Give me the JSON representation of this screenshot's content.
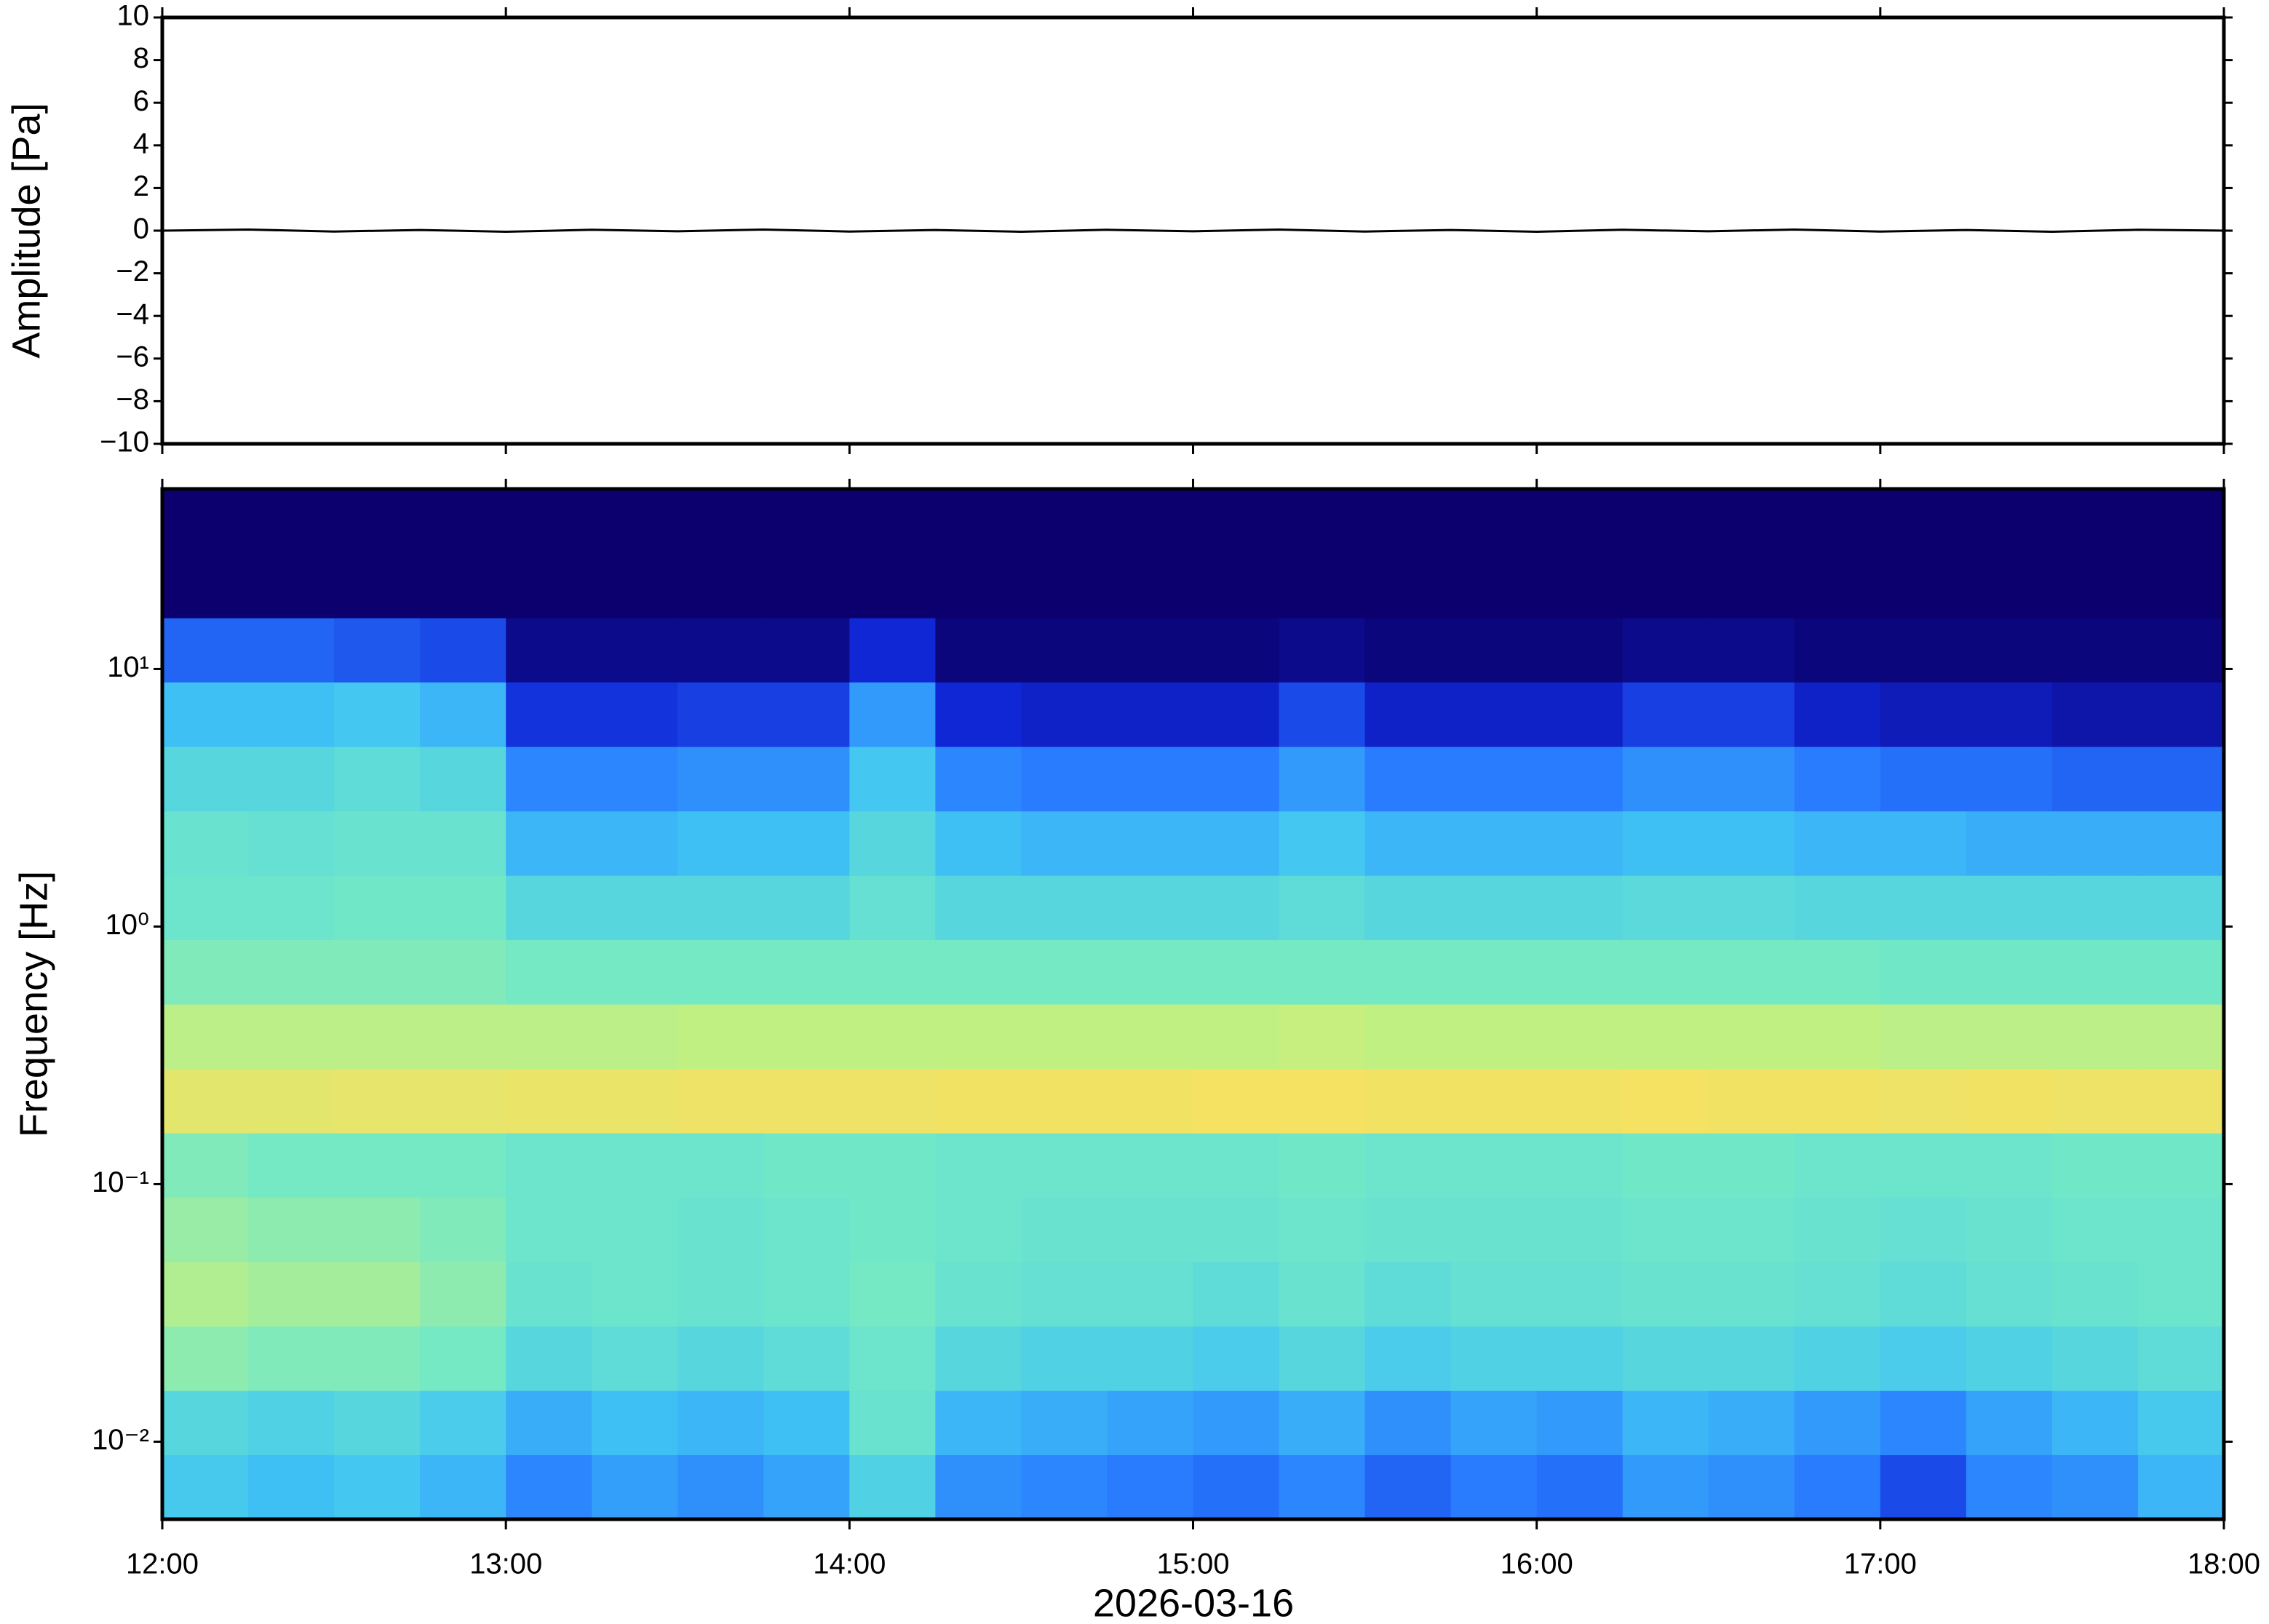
{
  "chart_data": [
    {
      "type": "line",
      "ylabel": "Amplitude [Pa]",
      "color": "#000000",
      "x": [
        "12:00",
        "12:15",
        "12:30",
        "12:45",
        "13:00",
        "13:15",
        "13:30",
        "13:45",
        "14:00",
        "14:15",
        "14:30",
        "14:45",
        "15:00",
        "15:15",
        "15:30",
        "15:45",
        "16:00",
        "16:15",
        "16:30",
        "16:45",
        "17:00",
        "17:15",
        "17:30",
        "17:45",
        "18:00"
      ],
      "values": [
        0,
        0.05,
        -0.04,
        0.03,
        -0.05,
        0.04,
        -0.03,
        0.05,
        -0.04,
        0.03,
        -0.05,
        0.04,
        -0.03,
        0.05,
        -0.04,
        0.03,
        -0.05,
        0.04,
        -0.03,
        0.05,
        -0.04,
        0.03,
        -0.05,
        0.04,
        0
      ],
      "xlim": [
        "12:00",
        "18:00"
      ],
      "ylim": [
        -10,
        10
      ],
      "yticks": [
        {
          "value": -10,
          "label": "−10"
        },
        {
          "value": -8,
          "label": "−8"
        },
        {
          "value": -6,
          "label": "−6"
        },
        {
          "value": -4,
          "label": "−4"
        },
        {
          "value": -2,
          "label": "−2"
        },
        0,
        2,
        4,
        6,
        8,
        10
      ]
    },
    {
      "type": "heatmap",
      "ylabel": "Frequency [Hz]",
      "xlabel": "2026-03-16",
      "ylog": true,
      "time_bins": [
        "12:00",
        "12:15",
        "12:30",
        "12:45",
        "13:00",
        "13:15",
        "13:30",
        "13:45",
        "14:00",
        "14:15",
        "14:30",
        "14:45",
        "15:00",
        "15:15",
        "15:30",
        "15:45",
        "16:00",
        "16:15",
        "16:30",
        "16:45",
        "17:00",
        "17:15",
        "17:30",
        "17:45",
        "18:00"
      ],
      "freq_bins": [
        0.005,
        0.0089,
        0.0158,
        0.0281,
        0.05,
        0.089,
        0.158,
        0.281,
        0.5,
        0.89,
        1.58,
        2.81,
        5,
        8.9,
        15.8,
        28.1,
        50
      ],
      "values": [
        [
          45,
          42,
          44,
          40,
          30,
          35,
          32,
          36,
          48,
          32,
          30,
          28,
          26,
          30,
          24,
          28,
          26,
          34,
          32,
          28,
          20,
          30,
          32,
          40
        ],
        [
          50,
          48,
          50,
          46,
          38,
          42,
          40,
          42,
          55,
          40,
          38,
          36,
          34,
          38,
          32,
          36,
          34,
          40,
          38,
          34,
          30,
          36,
          40,
          45
        ],
        [
          62,
          60,
          60,
          58,
          50,
          52,
          50,
          52,
          56,
          50,
          48,
          48,
          46,
          50,
          46,
          48,
          48,
          50,
          50,
          48,
          46,
          48,
          50,
          52
        ],
        [
          68,
          66,
          66,
          62,
          55,
          56,
          55,
          56,
          58,
          55,
          54,
          54,
          52,
          55,
          52,
          54,
          54,
          55,
          55,
          54,
          52,
          54,
          55,
          56
        ],
        [
          64,
          62,
          62,
          60,
          56,
          56,
          55,
          56,
          57,
          56,
          55,
          55,
          55,
          56,
          55,
          55,
          55,
          56,
          56,
          55,
          54,
          55,
          56,
          56
        ],
        [
          60,
          58,
          58,
          58,
          56,
          56,
          56,
          57,
          57,
          56,
          56,
          56,
          56,
          57,
          56,
          56,
          56,
          57,
          57,
          56,
          56,
          56,
          57,
          57
        ],
        [
          80,
          80,
          81,
          81,
          82,
          82,
          83,
          83,
          83,
          84,
          84,
          84,
          85,
          85,
          84,
          84,
          84,
          85,
          84,
          84,
          83,
          84,
          83,
          83
        ],
        [
          70,
          70,
          70,
          70,
          70,
          70,
          71,
          71,
          71,
          71,
          71,
          71,
          71,
          72,
          71,
          71,
          71,
          71,
          71,
          71,
          70,
          70,
          70,
          70
        ],
        [
          60,
          60,
          60,
          60,
          58,
          58,
          58,
          58,
          58,
          58,
          58,
          58,
          58,
          58,
          58,
          58,
          58,
          58,
          58,
          58,
          57,
          57,
          57,
          57
        ],
        [
          56,
          56,
          57,
          57,
          50,
          50,
          50,
          50,
          54,
          50,
          50,
          50,
          50,
          52,
          50,
          50,
          50,
          51,
          51,
          50,
          50,
          50,
          50,
          50
        ],
        [
          55,
          54,
          55,
          55,
          40,
          40,
          42,
          42,
          50,
          42,
          40,
          40,
          40,
          44,
          40,
          40,
          40,
          42,
          42,
          40,
          40,
          38,
          38,
          38
        ],
        [
          50,
          50,
          52,
          50,
          30,
          30,
          32,
          32,
          44,
          30,
          28,
          28,
          28,
          34,
          28,
          28,
          28,
          32,
          32,
          28,
          26,
          26,
          24,
          24
        ],
        [
          42,
          42,
          44,
          40,
          16,
          16,
          18,
          18,
          34,
          14,
          12,
          12,
          12,
          20,
          12,
          12,
          12,
          18,
          18,
          12,
          10,
          10,
          8,
          8
        ],
        [
          24,
          24,
          22,
          20,
          4,
          4,
          4,
          4,
          14,
          2,
          2,
          2,
          2,
          4,
          2,
          2,
          2,
          4,
          4,
          2,
          2,
          2,
          2,
          2
        ],
        [
          0,
          0,
          0,
          0,
          0,
          0,
          0,
          0,
          0,
          0,
          0,
          0,
          0,
          0,
          0,
          0,
          0,
          0,
          0,
          0,
          0,
          0,
          0,
          0
        ],
        [
          0,
          0,
          0,
          0,
          0,
          0,
          0,
          0,
          0,
          0,
          0,
          0,
          0,
          0,
          0,
          0,
          0,
          0,
          0,
          0,
          0,
          0,
          0,
          0
        ]
      ],
      "colormap": [
        "#0b006e",
        "#1028d8",
        "#2a80ff",
        "#40c4f4",
        "#70e8c8",
        "#c4f080",
        "#f8e060",
        "#f8a040"
      ],
      "value_range": [
        0,
        100
      ],
      "xlim": [
        "12:00",
        "18:00"
      ],
      "xticks": [
        "12:00",
        "13:00",
        "14:00",
        "15:00",
        "16:00",
        "17:00",
        "18:00"
      ],
      "ylim": [
        0.005,
        50
      ],
      "yticks": [
        {
          "value": 0.01,
          "label": "10⁻²"
        },
        {
          "value": 0.1,
          "label": "10⁻¹"
        },
        {
          "value": 1,
          "label": "10⁰"
        },
        {
          "value": 10,
          "label": "10¹"
        }
      ]
    }
  ]
}
